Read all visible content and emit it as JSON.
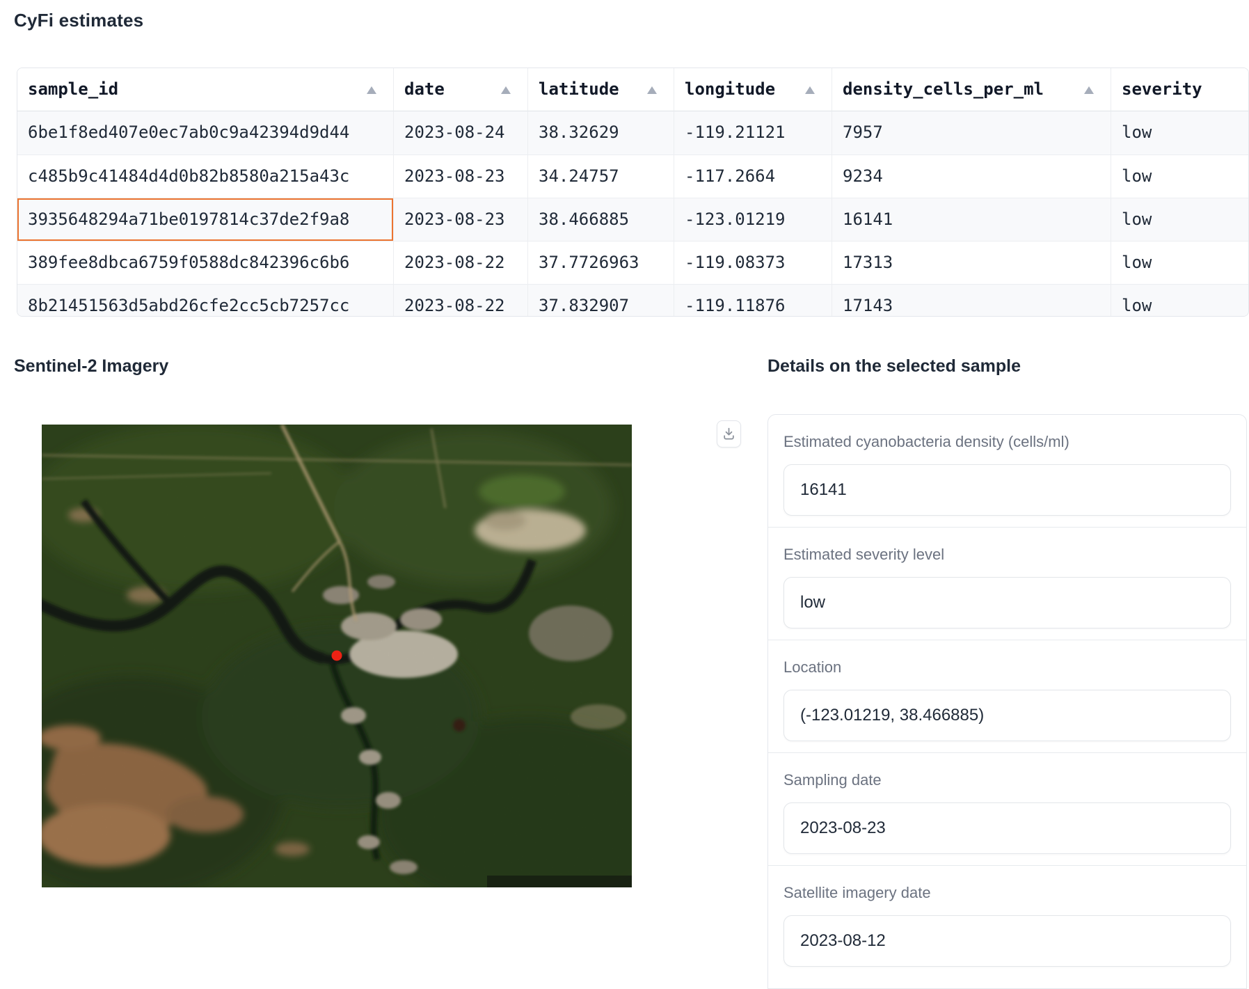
{
  "page": {
    "title": "CyFi estimates"
  },
  "colors": {
    "accent_orange": "#ec7430",
    "sort_active_orange": "#f97316",
    "sort_inactive_gray": "#a6adba",
    "marker_red": "#ee2214",
    "label_gray": "#6b7280",
    "text_dark": "#1f2937"
  },
  "table": {
    "columns": [
      {
        "label": "sample_id",
        "sort": "inactive"
      },
      {
        "label": "date",
        "sort": "inactive"
      },
      {
        "label": "latitude",
        "sort": "inactive"
      },
      {
        "label": "longitude",
        "sort": "inactive"
      },
      {
        "label": "density_cells_per_ml",
        "sort": "inactive"
      },
      {
        "label": "severity",
        "sort": "active"
      }
    ],
    "rows": [
      [
        "6be1f8ed407e0ec7ab0c9a42394d9d44",
        "2023-08-24",
        "38.32629",
        "-119.21121",
        "7957",
        "low"
      ],
      [
        "c485b9c41484d4d0b82b8580a215a43c",
        "2023-08-23",
        "34.24757",
        "-117.2664",
        "9234",
        "low"
      ],
      [
        "3935648294a71be0197814c37de2f9a8",
        "2023-08-23",
        "38.466885",
        "-123.01219",
        "16141",
        "low"
      ],
      [
        "389fee8dbca6759f0588dc842396c6b6",
        "2023-08-22",
        "37.7726963",
        "-119.08373",
        "17313",
        "low"
      ],
      [
        "8b21451563d5abd26cfe2cc5cb7257cc",
        "2023-08-22",
        "37.832907",
        "-119.11876",
        "17143",
        "low"
      ]
    ],
    "selected_cell": {
      "row": 2,
      "col": 0
    }
  },
  "imagery": {
    "heading": "Sentinel-2 Imagery"
  },
  "details": {
    "heading": "Details on the selected sample",
    "fields": [
      {
        "label": "Estimated cyanobacteria density (cells/ml)",
        "value": "16141"
      },
      {
        "label": "Estimated severity level",
        "value": "low"
      },
      {
        "label": "Location",
        "value": "(-123.01219, 38.466885)"
      },
      {
        "label": "Sampling date",
        "value": "2023-08-23"
      },
      {
        "label": "Satellite imagery date",
        "value": "2023-08-12"
      }
    ]
  }
}
